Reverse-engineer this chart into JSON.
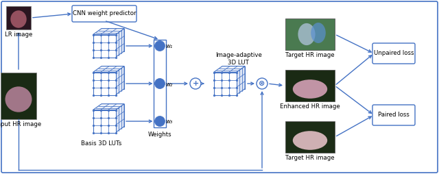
{
  "bg_color": "#ffffff",
  "border_color": "#4472c4",
  "arrow_color": "#4472c4",
  "circle_color": "#4472c4",
  "text_color": "#000000",
  "labels": {
    "lr_image": "LR image",
    "input_hr": "Input HR image",
    "cnn_box": "CNN weight predictor",
    "basis_luts": "Basis 3D LUTs",
    "weights": "Weights",
    "image_adaptive": "Image-adaptive\n3D LUT",
    "w1": "w₁",
    "w2": "w₂",
    "w3": "w₃",
    "target_hr_top": "Target HR image",
    "enhanced_hr": "Enhanced HR image",
    "target_hr_bot": "Target HR image",
    "unpaired": "Unpaired loss",
    "paired": "Paired loss"
  },
  "figsize": [
    6.4,
    2.54
  ],
  "dpi": 100
}
